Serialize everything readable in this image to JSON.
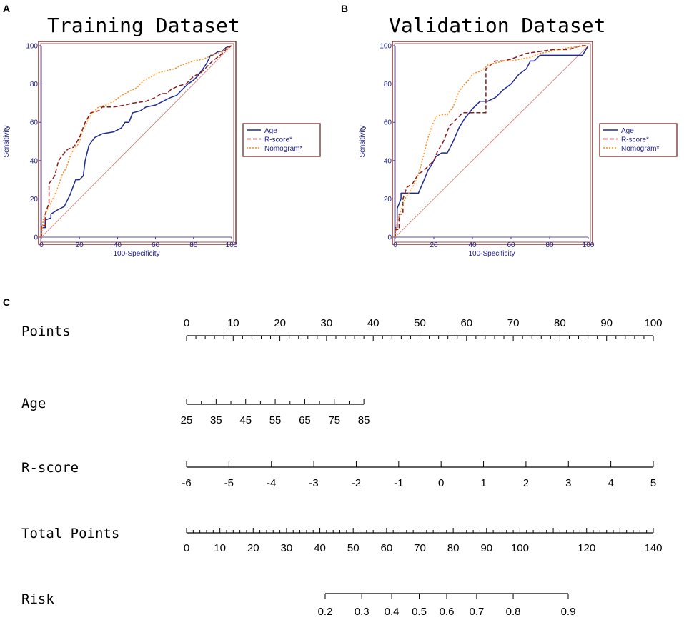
{
  "chart_data": [
    {
      "type": "line",
      "panel": "A",
      "title": "Training Dataset",
      "xlabel": "100-Specificity",
      "ylabel": "Sensitivity",
      "xlim": [
        0,
        100
      ],
      "ylim": [
        0,
        100
      ],
      "xticks": [
        "0",
        "20",
        "40",
        "60",
        "80",
        "100"
      ],
      "yticks": [
        "0",
        "20",
        "40",
        "60",
        "80",
        "100"
      ],
      "legend": [
        "Age",
        "R-score*",
        "Nomogram*"
      ],
      "legend_position": "right",
      "series": [
        {
          "name": "Age",
          "color": "#1f2a8f",
          "dash": "solid",
          "x": [
            0,
            0,
            2,
            2,
            5,
            5,
            8,
            12,
            15,
            18,
            20,
            21,
            22,
            23,
            25,
            28,
            32,
            38,
            42,
            44,
            46,
            48,
            52,
            55,
            60,
            66,
            68,
            71,
            74,
            77,
            80,
            82,
            85,
            87,
            89,
            90,
            93,
            95,
            97,
            100
          ],
          "y": [
            0,
            5,
            5,
            9,
            10,
            12,
            14,
            16,
            22,
            30,
            30,
            31,
            32,
            40,
            48,
            52,
            54,
            55,
            57,
            60,
            60,
            65,
            66,
            68,
            69,
            72,
            73,
            74,
            77,
            80,
            82,
            84,
            88,
            91,
            95,
            95,
            97,
            97,
            99,
            100
          ]
        },
        {
          "name": "R-score*",
          "color": "#8b1a1a",
          "dash": "6,3",
          "x": [
            0,
            0,
            2,
            2,
            4,
            4,
            7,
            9,
            12,
            14,
            17,
            20,
            23,
            26,
            30,
            32,
            38,
            44,
            48,
            55,
            60,
            63,
            66,
            68,
            72,
            76,
            80,
            84,
            87,
            90,
            94,
            97,
            100
          ],
          "y": [
            0,
            6,
            6,
            12,
            18,
            28,
            32,
            40,
            44,
            46,
            47,
            52,
            60,
            65,
            66,
            68,
            68,
            69,
            70,
            71,
            73,
            75,
            75,
            77,
            79,
            80,
            84,
            86,
            89,
            92,
            95,
            98,
            100
          ]
        },
        {
          "name": "Nomogram*",
          "color": "#ff8c1a",
          "dash": "2,2",
          "x": [
            0,
            1,
            3,
            5,
            7,
            9,
            11,
            13,
            15,
            17,
            19,
            20,
            22,
            24,
            26,
            30,
            34,
            38,
            42,
            46,
            50,
            54,
            58,
            62,
            66,
            70,
            74,
            80,
            85,
            90,
            95,
            100
          ],
          "y": [
            0,
            10,
            14,
            18,
            22,
            27,
            33,
            36,
            42,
            46,
            48,
            50,
            56,
            60,
            64,
            68,
            69,
            71,
            74,
            76,
            78,
            82,
            84,
            86,
            87,
            88,
            90,
            92,
            93,
            95,
            97,
            100
          ]
        },
        {
          "name": "reference",
          "color": "#e07070",
          "dash": "solid",
          "x": [
            0,
            100
          ],
          "y": [
            0,
            100
          ]
        }
      ]
    },
    {
      "type": "line",
      "panel": "B",
      "title": "Validation Dataset",
      "xlabel": "100-Specificity",
      "ylabel": "Sensitivity",
      "xlim": [
        0,
        100
      ],
      "ylim": [
        0,
        100
      ],
      "xticks": [
        "0",
        "20",
        "40",
        "60",
        "80",
        "100"
      ],
      "yticks": [
        "0",
        "20",
        "40",
        "60",
        "80",
        "100"
      ],
      "legend": [
        "Age",
        "R-score*",
        "Nomogram*"
      ],
      "legend_position": "right",
      "series": [
        {
          "name": "Age",
          "color": "#1f2a8f",
          "dash": "solid",
          "x": [
            0,
            0,
            1,
            1,
            3,
            3,
            5,
            8,
            12,
            15,
            17,
            19,
            21,
            24,
            27,
            30,
            33,
            36,
            40,
            44,
            48,
            52,
            56,
            60,
            64,
            68,
            70,
            72,
            75,
            80,
            85,
            90,
            95,
            97,
            100
          ],
          "y": [
            0,
            5,
            5,
            15,
            20,
            23,
            23,
            23,
            23,
            30,
            35,
            38,
            42,
            44,
            44,
            50,
            57,
            62,
            67,
            71,
            71,
            73,
            77,
            80,
            85,
            88,
            92,
            92,
            95,
            95,
            95,
            95,
            95,
            95,
            100
          ]
        },
        {
          "name": "R-score*",
          "color": "#8b1a1a",
          "dash": "6,3",
          "x": [
            0,
            0,
            2,
            2,
            4,
            4,
            6,
            9,
            12,
            15,
            18,
            20,
            22,
            25,
            28,
            32,
            35,
            38,
            41,
            43,
            45,
            47,
            47,
            52,
            56,
            60,
            68,
            75,
            82,
            90,
            96,
            100
          ],
          "y": [
            0,
            4,
            4,
            12,
            12,
            20,
            26,
            28,
            33,
            35,
            38,
            40,
            45,
            50,
            58,
            62,
            65,
            65,
            65,
            65,
            65,
            65,
            88,
            92,
            92,
            93,
            96,
            97,
            98,
            98,
            100,
            100
          ]
        },
        {
          "name": "Nomogram*",
          "color": "#ff8c1a",
          "dash": "2,2",
          "x": [
            0,
            1,
            3,
            5,
            7,
            9,
            11,
            13,
            15,
            17,
            19,
            21,
            24,
            27,
            30,
            33,
            36,
            38,
            40,
            42,
            45,
            48,
            52,
            56,
            60,
            65,
            70,
            75,
            80,
            85,
            90,
            100
          ],
          "y": [
            0,
            8,
            14,
            20,
            23,
            26,
            30,
            36,
            44,
            52,
            58,
            63,
            64,
            64,
            68,
            76,
            80,
            82,
            85,
            86,
            87,
            90,
            91,
            92,
            92,
            93,
            94,
            96,
            97,
            98,
            99,
            100
          ]
        },
        {
          "name": "reference",
          "color": "#e07070",
          "dash": "solid",
          "x": [
            0,
            100
          ],
          "y": [
            0,
            100
          ]
        }
      ]
    },
    {
      "type": "nomogram",
      "panel": "C",
      "rows": [
        {
          "label": "Points",
          "ticks": [
            "0",
            "10",
            "20",
            "30",
            "40",
            "50",
            "60",
            "70",
            "80",
            "90",
            "100"
          ]
        },
        {
          "label": "Age",
          "ticks": [
            "25",
            "35",
            "45",
            "55",
            "65",
            "75",
            "85"
          ]
        },
        {
          "label": "R-score",
          "ticks": [
            "-6",
            "-5",
            "-4",
            "-3",
            "-2",
            "-1",
            "0",
            "1",
            "2",
            "3",
            "4",
            "5"
          ]
        },
        {
          "label": "Total Points",
          "ticks": [
            "0",
            "10",
            "20",
            "30",
            "40",
            "50",
            "60",
            "70",
            "80",
            "90",
            "100",
            "120",
            "140"
          ]
        },
        {
          "label": "Risk",
          "ticks": [
            "0.2",
            "0.3",
            "0.4",
            "0.5",
            "0.6",
            "0.7",
            "0.8",
            "0.9"
          ]
        }
      ]
    }
  ],
  "panels": {
    "a": "A",
    "b": "B",
    "c": "C"
  }
}
